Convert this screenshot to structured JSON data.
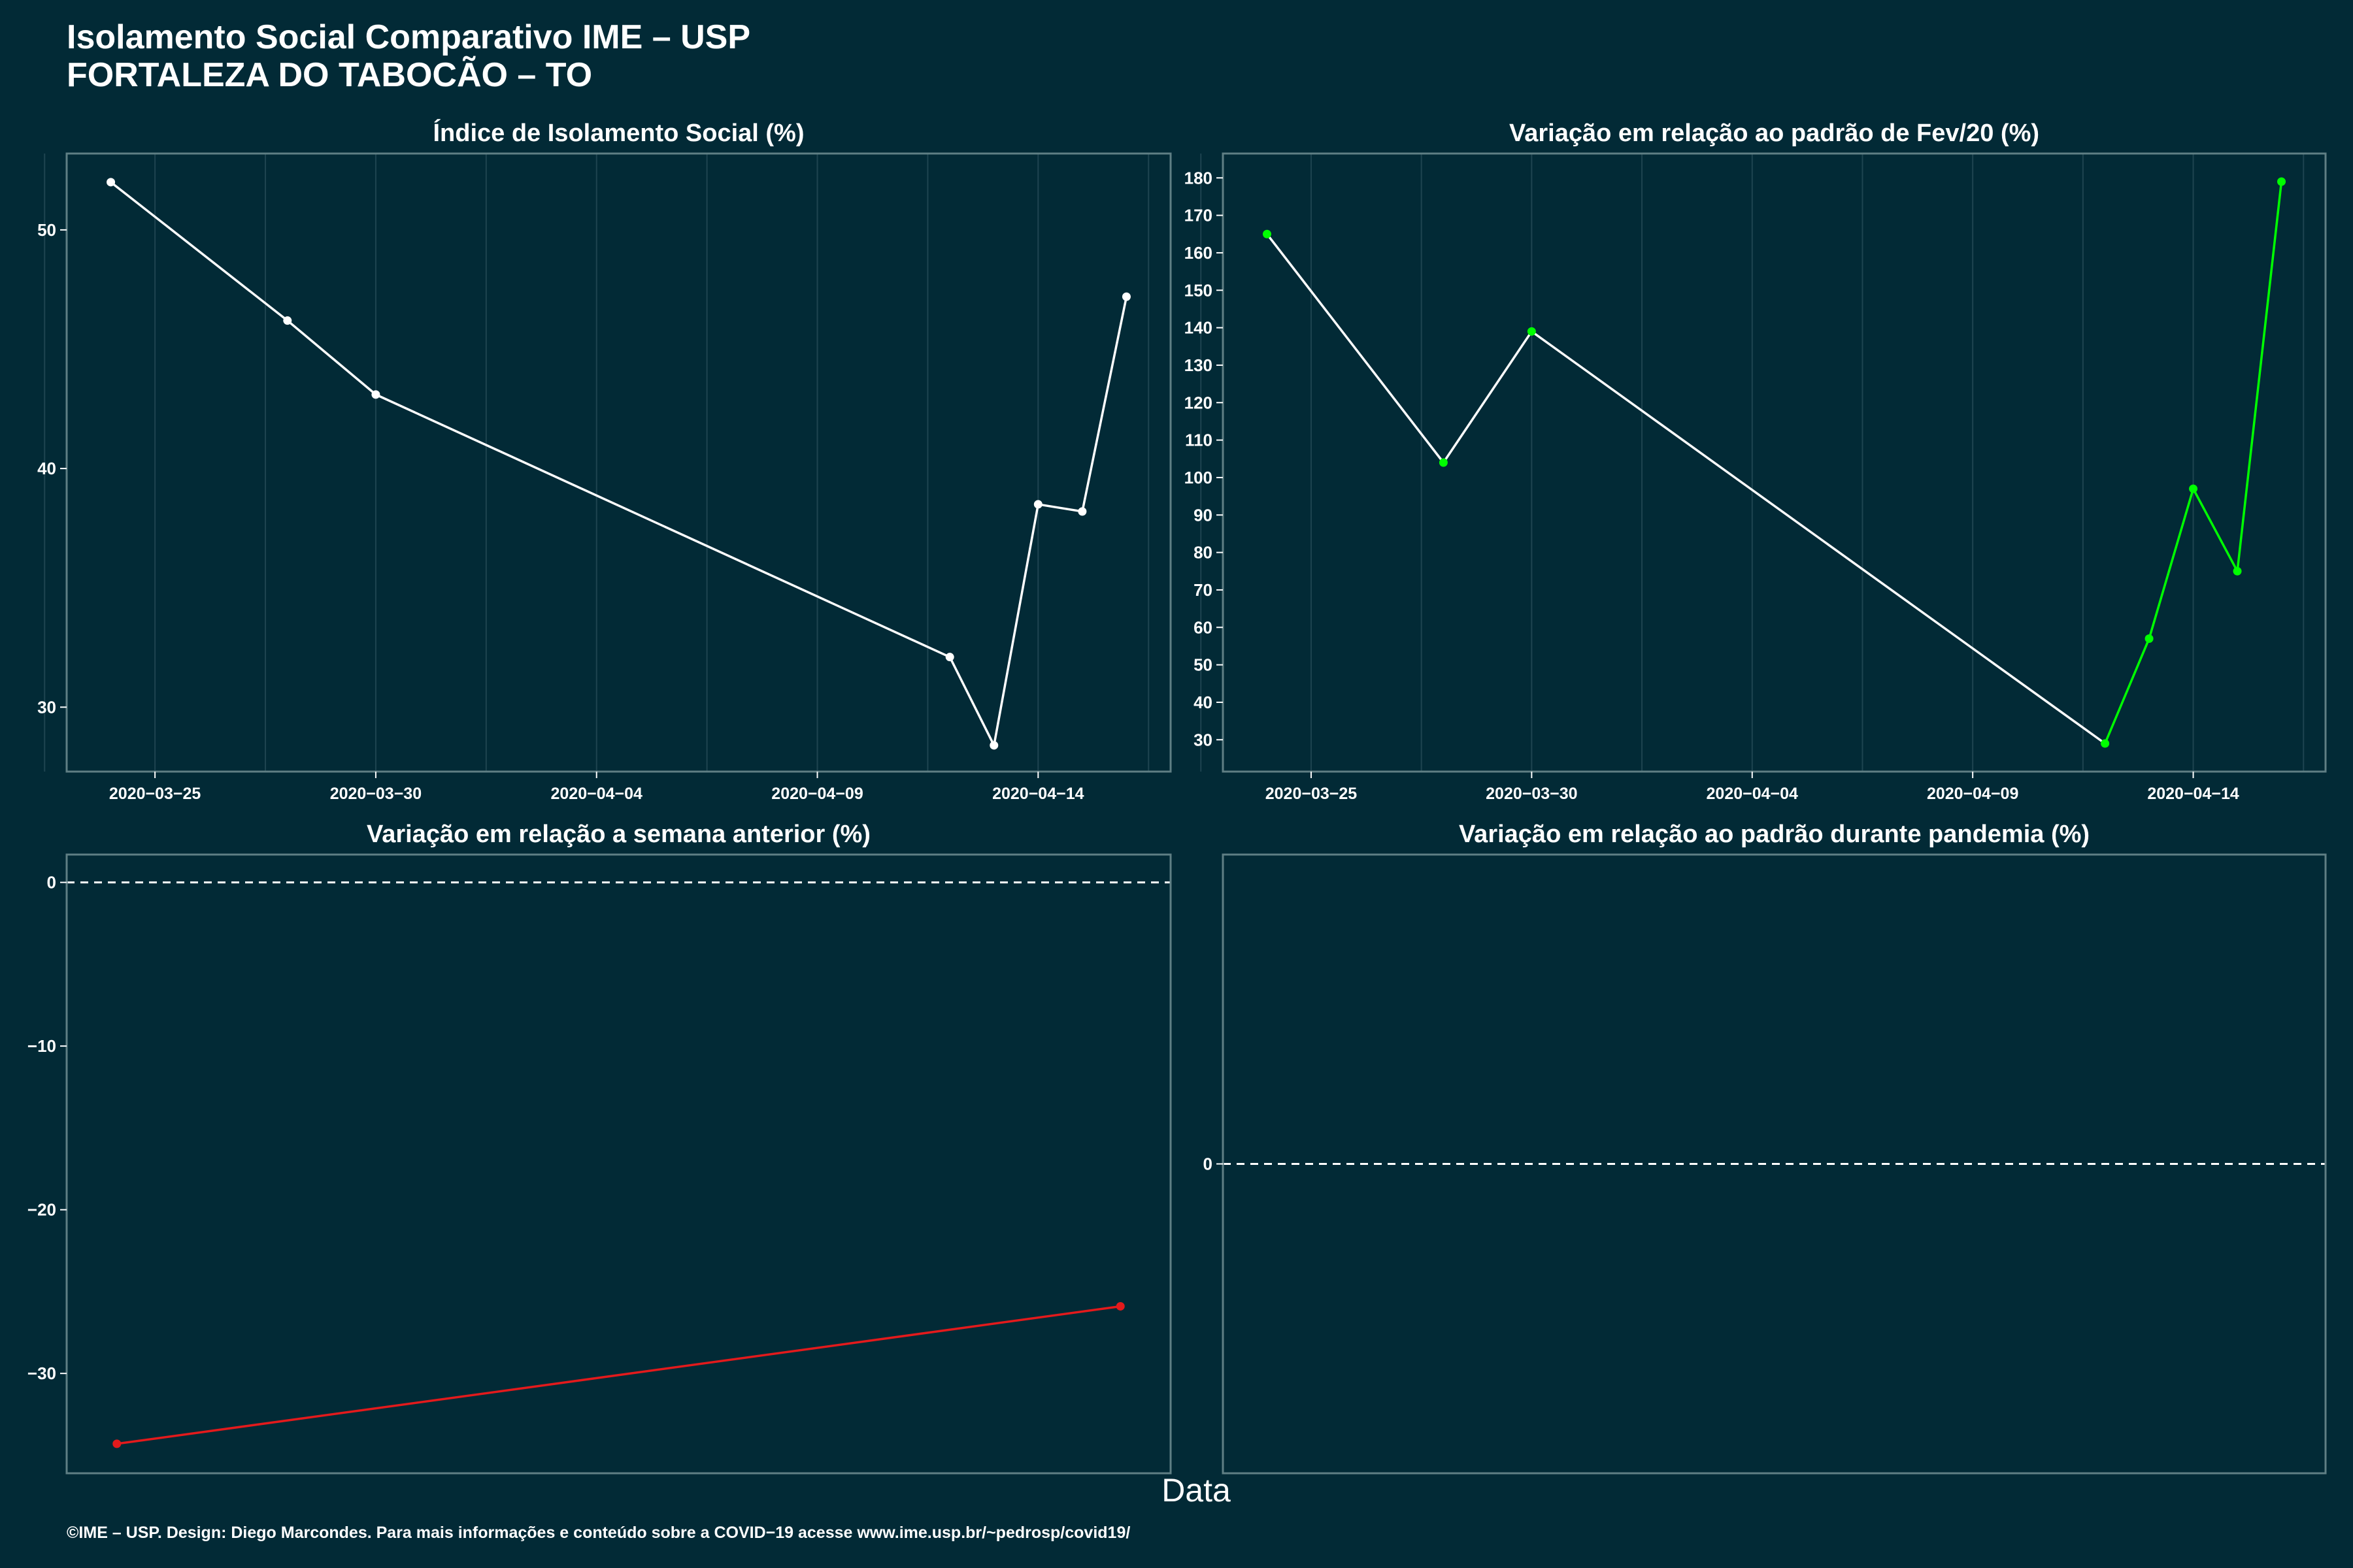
{
  "header": {
    "title": "Isolamento Social Comparativo IME – USP",
    "subtitle": "FORTALEZA DO TABOCÃO – TO"
  },
  "footer": {
    "text": "©IME – USP. Design: Diego Marcondes. Para mais informações e conteúdo sobre a COVID−19 acesse www.ime.usp.br/~pedrosp/covid19/"
  },
  "xlabel": "Data",
  "colors": {
    "background": "#022a36",
    "panel_border": "#5f7f84",
    "grid": "#1e4450",
    "white_line": "#ffffff",
    "green": "#00ff00",
    "red": "#e31a1c"
  },
  "chart_data": [
    {
      "type": "line",
      "title": "Índice de Isolamento Social (%)",
      "xlabel": "",
      "ylabel": "",
      "x": [
        "2020-03-24",
        "2020-03-28",
        "2020-03-30",
        "2020-04-12",
        "2020-04-13",
        "2020-04-14",
        "2020-04-15",
        "2020-04-16"
      ],
      "series": [
        {
          "values": [
            52.0,
            46.2,
            43.1,
            32.1,
            28.4,
            38.5,
            38.2,
            47.2
          ],
          "color": "#ffffff",
          "point_color": "#ffffff"
        }
      ],
      "xticks": [
        "2020-03-25",
        "2020-03-30",
        "2020-04-04",
        "2020-04-09",
        "2020-04-14"
      ],
      "yticks": [
        30,
        40,
        50
      ],
      "ylim": [
        27.3,
        53.2
      ],
      "grid": "vertical"
    },
    {
      "type": "line",
      "title": "Variação em relação ao padrão de Fev/20 (%)",
      "xlabel": "",
      "ylabel": "",
      "x": [
        "2020-03-24",
        "2020-03-28",
        "2020-03-30",
        "2020-04-12",
        "2020-04-13",
        "2020-04-14",
        "2020-04-15",
        "2020-04-16"
      ],
      "series": [
        {
          "values": [
            165,
            104,
            139,
            29,
            57,
            97,
            75,
            179
          ],
          "segment_colors": [
            "#ffffff",
            "#ffffff",
            "#ffffff",
            "#00ff00",
            "#00ff00",
            "#00ff00",
            "#00ff00"
          ],
          "point_color": "#00ff00"
        }
      ],
      "xticks": [
        "2020-03-25",
        "2020-03-30",
        "2020-04-04",
        "2020-04-09",
        "2020-04-14"
      ],
      "yticks": [
        30,
        40,
        50,
        60,
        70,
        80,
        90,
        100,
        110,
        120,
        130,
        140,
        150,
        160,
        170,
        180
      ],
      "ylim": [
        21.5,
        186.5
      ],
      "grid": "vertical"
    },
    {
      "type": "line",
      "title": "Variação em relação a semana anterior (%)",
      "xlabel": "",
      "ylabel": "",
      "x": [
        0,
        1
      ],
      "series": [
        {
          "values": [
            -34.3,
            -25.9
          ],
          "color": "#e31a1c",
          "point_color": "#e31a1c"
        }
      ],
      "xticks": [],
      "yticks": [
        -30,
        -20,
        -10,
        0
      ],
      "ylim": [
        -36.1,
        1.7
      ],
      "reference_line": 0,
      "grid": "none"
    },
    {
      "type": "line",
      "title": "Variação em relação ao padrão durante pandemia (%)",
      "xlabel": "",
      "ylabel": "",
      "x": [],
      "series": [],
      "xticks": [],
      "yticks": [
        0
      ],
      "ylim": [
        -1,
        1
      ],
      "reference_line": 0,
      "grid": "none"
    }
  ]
}
